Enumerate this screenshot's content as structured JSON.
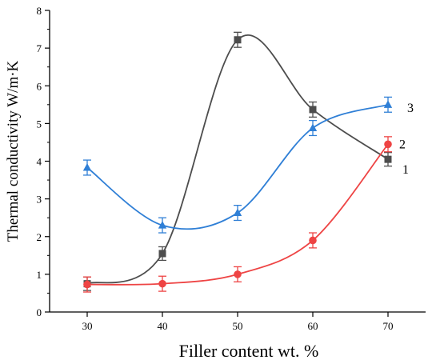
{
  "chart_data": {
    "type": "line",
    "xlabel": "Filler content wt. %",
    "ylabel": "Thermal conductivity W/m·K",
    "xlim": [
      25,
      75
    ],
    "ylim": [
      0,
      8
    ],
    "xticks": [
      30,
      40,
      50,
      60,
      70
    ],
    "yticks": [
      0,
      1,
      2,
      3,
      4,
      5,
      6,
      7,
      8
    ],
    "grid": false,
    "legend": "none",
    "series": [
      {
        "name": "1",
        "color": "#4d4d4d",
        "marker": "square",
        "x": [
          30,
          40,
          50,
          60,
          70
        ],
        "y": [
          0.75,
          1.55,
          7.22,
          5.37,
          4.05
        ],
        "error": [
          0.18,
          0.18,
          0.2,
          0.2,
          0.18
        ]
      },
      {
        "name": "2",
        "color": "#ee4444",
        "marker": "circle",
        "x": [
          30,
          40,
          50,
          60,
          70
        ],
        "y": [
          0.73,
          0.75,
          1.0,
          1.9,
          4.45
        ],
        "error": [
          0.2,
          0.2,
          0.2,
          0.2,
          0.2
        ]
      },
      {
        "name": "3",
        "color": "#2f7fd6",
        "marker": "triangle",
        "x": [
          30,
          40,
          50,
          60,
          70
        ],
        "y": [
          3.83,
          2.3,
          2.63,
          4.88,
          5.5
        ],
        "error": [
          0.2,
          0.2,
          0.2,
          0.2,
          0.2
        ]
      }
    ]
  }
}
